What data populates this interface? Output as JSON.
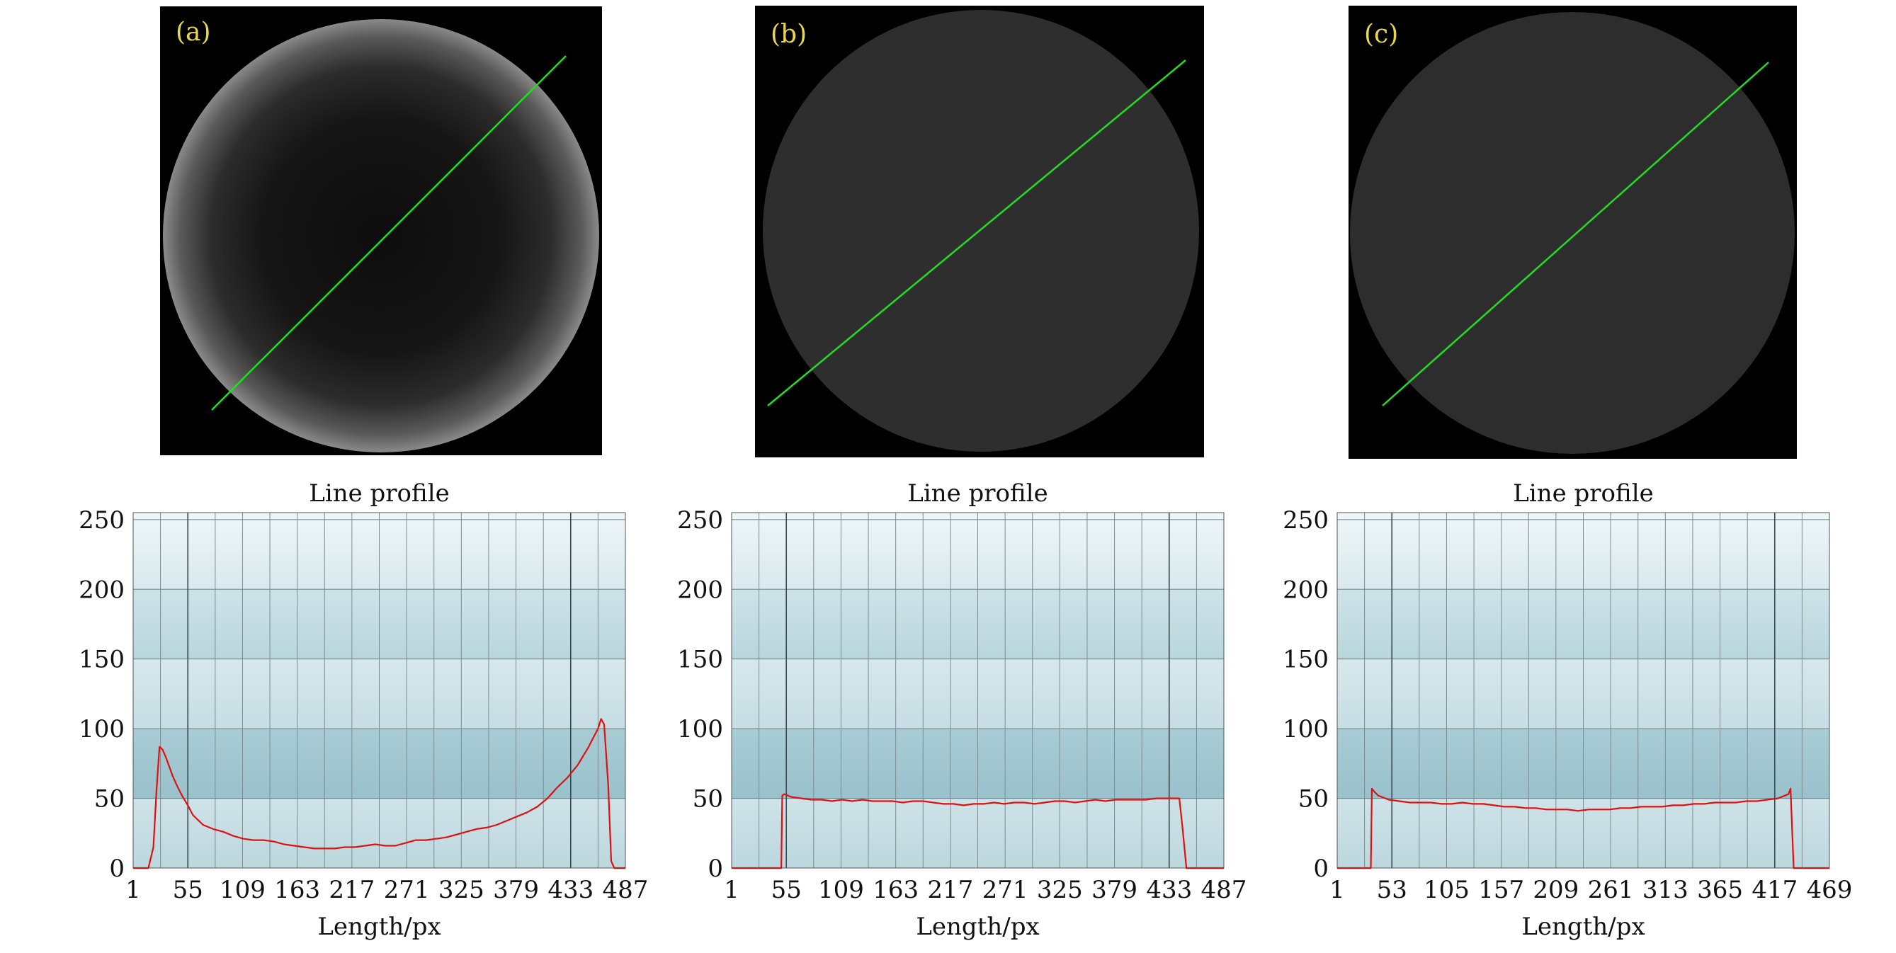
{
  "panels": [
    {
      "tag": "(a)",
      "image": {
        "disc_style": "vignetted",
        "profile_line_color": "#22dd22"
      }
    },
    {
      "tag": "(b)",
      "image": {
        "disc_style": "uniform",
        "profile_line_color": "#22dd22"
      }
    },
    {
      "tag": "(c)",
      "image": {
        "disc_style": "uniform",
        "profile_line_color": "#22dd22"
      }
    }
  ],
  "chart_data": [
    {
      "type": "line",
      "title": "Line profile",
      "xlabel": "Length/px",
      "ylabel": "",
      "x_ticks": [
        1,
        55,
        109,
        163,
        217,
        271,
        325,
        379,
        433,
        487
      ],
      "y_ticks": [
        0,
        50,
        100,
        150,
        200,
        250
      ],
      "xlim": [
        1,
        487
      ],
      "ylim": [
        0,
        255
      ],
      "grid": true,
      "line_color": "#dd1111",
      "series": [
        {
          "x": [
            1,
            16,
            21,
            24,
            27,
            30,
            33,
            36,
            40,
            45,
            50,
            55,
            60,
            70,
            80,
            90,
            100,
            110,
            120,
            130,
            140,
            150,
            160,
            170,
            180,
            190,
            200,
            210,
            220,
            230,
            240,
            250,
            260,
            270,
            280,
            290,
            300,
            310,
            320,
            330,
            340,
            350,
            360,
            370,
            380,
            390,
            400,
            410,
            420,
            430,
            440,
            445,
            450,
            455,
            460,
            463,
            466,
            470,
            473,
            476,
            480,
            487
          ],
          "y": [
            0,
            0,
            15,
            55,
            87,
            85,
            80,
            74,
            66,
            58,
            51,
            45,
            38,
            31,
            28,
            26,
            23,
            21,
            20,
            20,
            19,
            17,
            16,
            15,
            14,
            14,
            14,
            15,
            15,
            16,
            17,
            16,
            16,
            18,
            20,
            20,
            21,
            22,
            24,
            26,
            28,
            29,
            31,
            34,
            37,
            40,
            44,
            50,
            58,
            65,
            74,
            80,
            86,
            93,
            100,
            107,
            103,
            60,
            5,
            0,
            0,
            0
          ]
        }
      ]
    },
    {
      "type": "line",
      "title": "Line profile",
      "xlabel": "Length/px",
      "ylabel": "",
      "x_ticks": [
        1,
        55,
        109,
        163,
        217,
        271,
        325,
        379,
        433,
        487
      ],
      "y_ticks": [
        0,
        50,
        100,
        150,
        200,
        250
      ],
      "xlim": [
        1,
        487
      ],
      "ylim": [
        0,
        255
      ],
      "grid": true,
      "line_color": "#dd1111",
      "series": [
        {
          "x": [
            1,
            50,
            51,
            53,
            60,
            70,
            80,
            90,
            100,
            110,
            120,
            130,
            140,
            150,
            160,
            170,
            180,
            190,
            200,
            210,
            220,
            230,
            240,
            250,
            260,
            270,
            280,
            290,
            300,
            310,
            320,
            330,
            340,
            350,
            360,
            370,
            380,
            390,
            400,
            410,
            420,
            430,
            440,
            443,
            446,
            450,
            487
          ],
          "y": [
            0,
            0,
            52,
            53,
            51,
            50,
            49,
            49,
            48,
            49,
            48,
            49,
            48,
            48,
            48,
            47,
            48,
            48,
            47,
            46,
            46,
            45,
            46,
            46,
            47,
            46,
            47,
            47,
            46,
            47,
            48,
            48,
            47,
            48,
            49,
            48,
            49,
            49,
            49,
            49,
            50,
            50,
            50,
            50,
            30,
            0,
            0
          ]
        }
      ]
    },
    {
      "type": "line",
      "title": "Line profile",
      "xlabel": "Length/px",
      "ylabel": "",
      "x_ticks": [
        1,
        53,
        105,
        157,
        209,
        261,
        313,
        365,
        417,
        469
      ],
      "y_ticks": [
        0,
        50,
        100,
        150,
        200,
        250
      ],
      "xlim": [
        1,
        469
      ],
      "ylim": [
        0,
        255
      ],
      "grid": true,
      "line_color": "#dd1111",
      "series": [
        {
          "x": [
            1,
            33,
            34,
            36,
            40,
            50,
            60,
            70,
            80,
            90,
            100,
            110,
            120,
            130,
            140,
            150,
            160,
            170,
            180,
            190,
            200,
            210,
            220,
            230,
            240,
            250,
            260,
            270,
            280,
            290,
            300,
            310,
            320,
            330,
            340,
            350,
            360,
            370,
            380,
            390,
            400,
            410,
            420,
            430,
            432,
            435,
            469
          ],
          "y": [
            0,
            0,
            57,
            55,
            52,
            49,
            48,
            47,
            47,
            47,
            46,
            46,
            47,
            46,
            46,
            45,
            44,
            44,
            43,
            43,
            42,
            42,
            42,
            41,
            42,
            42,
            42,
            43,
            43,
            44,
            44,
            44,
            45,
            45,
            46,
            46,
            47,
            47,
            47,
            48,
            48,
            49,
            50,
            53,
            57,
            0,
            0
          ]
        }
      ]
    }
  ]
}
